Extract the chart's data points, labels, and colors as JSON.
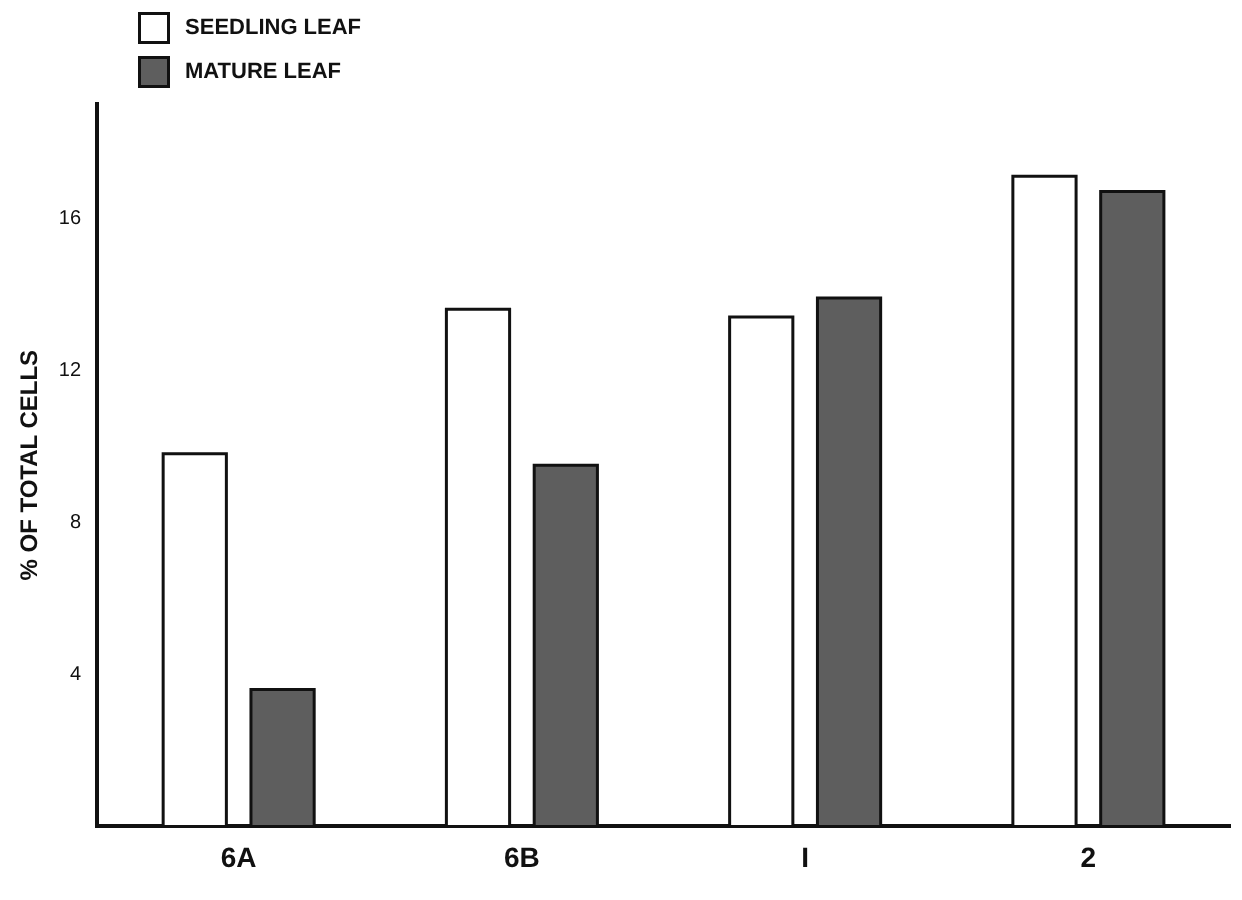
{
  "chart_data": {
    "type": "bar",
    "ylabel": "% OF TOTAL CELLS",
    "categories": [
      "6A",
      "6B",
      "I",
      "2"
    ],
    "series": [
      {
        "name": "SEEDLING LEAF",
        "color": "#ffffff",
        "values": [
          9.8,
          13.6,
          13.4,
          17.1
        ]
      },
      {
        "name": "MATURE LEAF",
        "color": "#5e5e5e",
        "values": [
          3.6,
          9.5,
          13.9,
          16.7
        ]
      }
    ],
    "ylim": [
      0,
      19
    ],
    "yticks": [
      4,
      8,
      12,
      16
    ],
    "grid": false,
    "legend": "top left"
  }
}
